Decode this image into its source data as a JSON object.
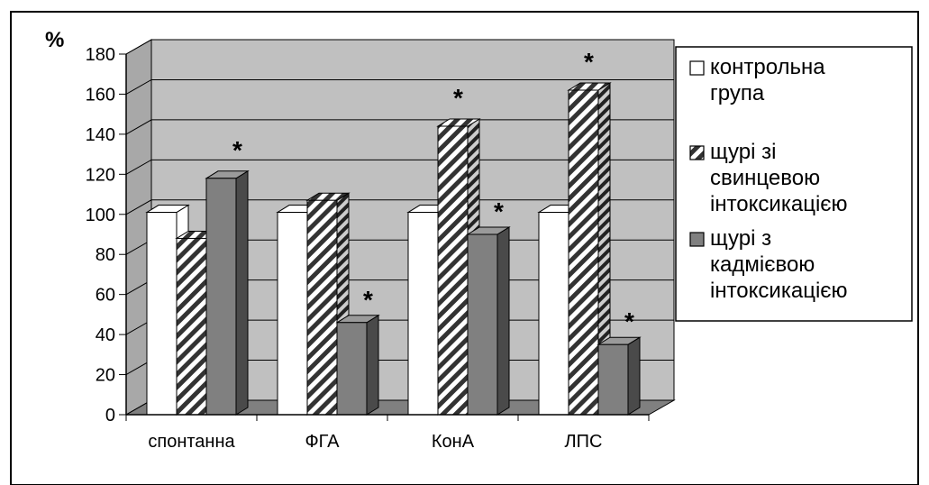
{
  "chart_data": {
    "type": "bar",
    "unit_label": "%",
    "categories": [
      "спонтанна",
      "ФГА",
      "КонА",
      "ЛПС"
    ],
    "ylim": [
      0,
      180
    ],
    "yticks": [
      0,
      20,
      40,
      60,
      80,
      100,
      120,
      140,
      160,
      180
    ],
    "grid": true,
    "legend_position": "right",
    "series": [
      {
        "name": "контрольна група",
        "values": [
          101,
          101,
          101,
          101
        ],
        "pattern": "white",
        "significant": [
          false,
          false,
          false,
          false
        ]
      },
      {
        "name": "щурі зі свинцевою інтоксикацією",
        "values": [
          88,
          107,
          144,
          162
        ],
        "pattern": "hatched",
        "significant": [
          false,
          false,
          true,
          true
        ]
      },
      {
        "name": "щурі з кадмієвою інтоксикацією",
        "values": [
          118,
          46,
          90,
          35
        ],
        "pattern": "gray",
        "significant": [
          true,
          true,
          true,
          true
        ]
      }
    ],
    "legend_lines": [
      [
        "контрольна",
        "група"
      ],
      [
        "щурі зі",
        "свинцевою",
        "інтоксикацією"
      ],
      [
        "щурі з",
        "кадмієвою",
        "інтоксикацією"
      ]
    ],
    "significance_marker": "*",
    "colors": {
      "white_face": "#ffffff",
      "white_side": "#ffffff",
      "hatch_bg": "#ffffff",
      "hatch_line": "#333333",
      "gray_face": "#808080",
      "gray_side": "#4a4a4a",
      "gray_top": "#9a9a9a",
      "plot_wall": "#c0c0c0",
      "plot_floor": "#808080",
      "outline": "#000000"
    }
  }
}
